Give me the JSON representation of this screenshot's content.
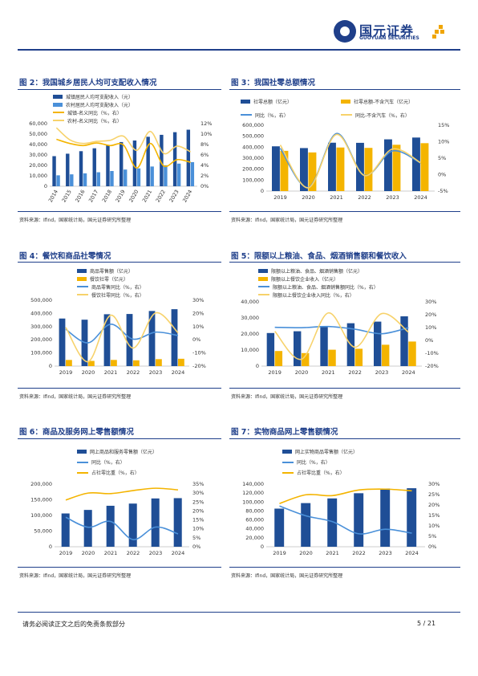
{
  "header": {
    "logo_cn": "国元证券",
    "logo_en": "GUOYUAN SECURITIES"
  },
  "footer": {
    "disclaimer": "请务必阅读正文之后的免责条款部分",
    "page": "5 / 21"
  },
  "figures": [
    {
      "title": "图 2：我国城乡居民人均可支配收入情况",
      "source": "资料来源：Ifind，国家统计局，国元证券研究所整理",
      "legend": [
        "城镇居民人均可支配收入（元）",
        "农村居民人均可支配收入（元）",
        "城镇-名义同比（%，右）",
        "农村-名义同比（%，右）"
      ]
    },
    {
      "title": "图 3：我国社零总额情况",
      "source": "资料来源：Ifind，国家统计局，国元证券研究所整理",
      "legend": [
        "社零总额（亿元）",
        "社零总额-不含汽车（亿元）",
        "同比（%，右）",
        "同比-不含汽车（%，右）"
      ]
    },
    {
      "title": "图 4：餐饮和商品社零情况",
      "source": "资料来源：Ifind，国家统计局，国元证券研究所整理",
      "legend": [
        "商品零售额（亿元）",
        "餐饮社零（亿元）",
        "商品零售同比（%，右）",
        "餐饮社零同比（%，右）"
      ]
    },
    {
      "title": "图 5：限额以上粮油、食品、烟酒销售额和餐饮收入",
      "source": "资料来源：Ifind，国家统计局，国元证券研究所整理",
      "legend": [
        "限额以上粮油、食品、烟酒销售额（亿元）",
        "限额以上餐饮企业收入（亿元）",
        "限额以上粮油、食品、烟酒销售额同比（%，右）",
        "限额以上餐饮企业收入同比（%，右）"
      ]
    },
    {
      "title": "图 6：商品及服务网上零售额情况",
      "source": "资料来源：Ifind，国家统计局，国元证券研究所整理",
      "legend": [
        "网上商品和服务零售额（亿元）",
        "同比（%，右）",
        "占社零比重（%，右）"
      ]
    },
    {
      "title": "图 7：实物商品网上零售额情况",
      "source": "资料来源：Ifind，国家统计局，国元证券研究所整理",
      "legend": [
        "网上实物商品零售额（亿元）",
        "同比（%，右）",
        "占社零比重（%，右）"
      ]
    }
  ],
  "colors": {
    "brand": "#1f3f8a",
    "navy": "#1f4e96",
    "light_blue": "#4a90d9",
    "gold": "#f4b400",
    "light_gold": "#f7d26b"
  },
  "chart_data": [
    {
      "type": "bar",
      "categories": [
        "2014",
        "2015",
        "2016",
        "2017",
        "2018",
        "2019",
        "2020",
        "2021",
        "2022",
        "2023",
        "2024"
      ],
      "y_ticks": [
        "0",
        "10,000",
        "20,000",
        "30,000",
        "40,000",
        "50,000",
        "60,000"
      ],
      "y2_ticks": [
        "0%",
        "2%",
        "4%",
        "6%",
        "8%",
        "10%",
        "12%"
      ],
      "ylim": [
        0,
        60000
      ],
      "y2lim": [
        0,
        12
      ],
      "series": [
        {
          "name": "城镇居民人均可支配收入（元）",
          "kind": "bar",
          "axis": "left",
          "color": "#1f4e96",
          "values": [
            28844,
            31195,
            33616,
            36396,
            39251,
            42359,
            43834,
            47412,
            49283,
            51821,
            54188
          ]
        },
        {
          "name": "农村居民人均可支配收入（元）",
          "kind": "bar",
          "axis": "left",
          "color": "#4a90d9",
          "values": [
            10489,
            11422,
            12363,
            13432,
            14617,
            16021,
            17131,
            18931,
            20133,
            21691,
            23119
          ]
        },
        {
          "name": "城镇-名义同比（%，右）",
          "kind": "line",
          "axis": "right",
          "color": "#f4b400",
          "values": [
            9.0,
            8.2,
            7.8,
            8.3,
            7.8,
            7.9,
            3.5,
            8.2,
            3.9,
            5.1,
            4.6
          ]
        },
        {
          "name": "农村-名义同比（%，右）",
          "kind": "line",
          "axis": "right",
          "color": "#f7d26b",
          "values": [
            11.2,
            8.9,
            8.2,
            8.6,
            8.8,
            9.6,
            6.9,
            10.5,
            6.3,
            7.7,
            6.6
          ]
        }
      ]
    },
    {
      "type": "bar",
      "categories": [
        "2019",
        "2020",
        "2021",
        "2022",
        "2023",
        "2024"
      ],
      "y_ticks": [
        "0",
        "100,000",
        "200,000",
        "300,000",
        "400,000",
        "500,000",
        "600,000"
      ],
      "y2_ticks": [
        "-5%",
        "0%",
        "5%",
        "10%",
        "15%"
      ],
      "ylim": [
        0,
        600000
      ],
      "y2lim": [
        -5,
        15
      ],
      "series": [
        {
          "name": "社零总额（亿元）",
          "kind": "bar",
          "axis": "left",
          "color": "#1f4e96",
          "values": [
            408017,
            391981,
            440823,
            439733,
            471495,
            487895
          ]
        },
        {
          "name": "社零总额-不含汽车（亿元）",
          "kind": "bar",
          "axis": "left",
          "color": "#f4b400",
          "values": [
            366636,
            352228,
            397041,
            393708,
            422123,
            436588
          ]
        },
        {
          "name": "同比（%，右）",
          "kind": "line",
          "axis": "right",
          "color": "#4a90d9",
          "values": [
            8.0,
            -3.9,
            12.5,
            -0.2,
            7.2,
            3.5
          ]
        },
        {
          "name": "同比-不含汽车（%，右）",
          "kind": "line",
          "axis": "right",
          "color": "#f7d26b",
          "values": [
            9.0,
            -4.0,
            12.2,
            -0.3,
            7.8,
            3.6
          ]
        }
      ]
    },
    {
      "type": "bar",
      "categories": [
        "2019",
        "2020",
        "2021",
        "2022",
        "2023",
        "2024"
      ],
      "y_ticks": [
        "0",
        "100,000",
        "200,000",
        "300,000",
        "400,000",
        "500,000"
      ],
      "y2_ticks": [
        "-20%",
        "-10%",
        "0%",
        "10%",
        "20%",
        "30%"
      ],
      "ylim": [
        0,
        500000
      ],
      "y2lim": [
        -20,
        30
      ],
      "series": [
        {
          "name": "商品零售额（亿元）",
          "kind": "bar",
          "axis": "left",
          "color": "#1f4e96",
          "values": [
            361296,
            352453,
            393928,
            395792,
            418605,
            432177
          ]
        },
        {
          "name": "餐饮社零（亿元）",
          "kind": "bar",
          "axis": "left",
          "color": "#f4b400",
          "values": [
            46721,
            39527,
            46895,
            43941,
            52890,
            55718
          ]
        },
        {
          "name": "商品零售同比（%，右）",
          "kind": "line",
          "axis": "right",
          "color": "#4a90d9",
          "values": [
            7.9,
            -2.3,
            11.8,
            0.5,
            5.8,
            3.2
          ]
        },
        {
          "name": "餐饮社零同比（%，右）",
          "kind": "line",
          "axis": "right",
          "color": "#f7d26b",
          "values": [
            9.4,
            -16.6,
            18.6,
            -6.3,
            20.4,
            5.3
          ]
        }
      ]
    },
    {
      "type": "bar",
      "categories": [
        "2019",
        "2020",
        "2021",
        "2022",
        "2023",
        "2024"
      ],
      "y_ticks": [
        "0",
        "10,000",
        "20,000",
        "30,000",
        "40,000"
      ],
      "y2_ticks": [
        "-20%",
        "-10%",
        "0%",
        "10%",
        "20%",
        "30%"
      ],
      "ylim": [
        0,
        40000
      ],
      "y2lim": [
        -20,
        30
      ],
      "series": [
        {
          "name": "限额以上粮油、食品、烟酒销售额（亿元）",
          "kind": "bar",
          "axis": "left",
          "color": "#1f4e96",
          "values": [
            20600,
            21700,
            24500,
            26700,
            27700,
            31000
          ]
        },
        {
          "name": "限额以上餐饮企业收入（亿元）",
          "kind": "bar",
          "axis": "left",
          "color": "#f4b400",
          "values": [
            9400,
            8100,
            10200,
            10800,
            13300,
            15300
          ]
        },
        {
          "name": "限额以上粮油、食品、烟酒销售额同比（%，右）",
          "kind": "line",
          "axis": "right",
          "color": "#4a90d9",
          "values": [
            10.2,
            9.9,
            10.8,
            8.7,
            5.2,
            9.9
          ]
        },
        {
          "name": "限额以上餐饮企业收入同比（%，右）",
          "kind": "line",
          "axis": "right",
          "color": "#f7d26b",
          "values": [
            7.1,
            -14.6,
            21.4,
            -5.3,
            20.9,
            6.4
          ]
        }
      ]
    },
    {
      "type": "bar",
      "categories": [
        "2019",
        "2020",
        "2021",
        "2022",
        "2023",
        "2024"
      ],
      "y_ticks": [
        "0",
        "50,000",
        "100,000",
        "150,000",
        "200,000"
      ],
      "y2_ticks": [
        "0%",
        "5%",
        "10%",
        "15%",
        "20%",
        "25%",
        "30%",
        "35%"
      ],
      "ylim": [
        0,
        200000
      ],
      "y2lim": [
        0,
        35
      ],
      "series": [
        {
          "name": "网上商品和服务零售额（亿元）",
          "kind": "bar",
          "axis": "left",
          "color": "#1f4e96",
          "values": [
            106324,
            117601,
            130884,
            137853,
            154264,
            155225
          ]
        },
        {
          "name": "同比（%，右）",
          "kind": "line",
          "axis": "right",
          "color": "#4a90d9",
          "values": [
            16.5,
            10.9,
            14.1,
            4.0,
            11.0,
            7.2
          ]
        },
        {
          "name": "占社零比重（%，右）",
          "kind": "line",
          "axis": "right",
          "color": "#f4b400",
          "values": [
            26.1,
            30.0,
            29.7,
            31.4,
            32.7,
            31.8
          ]
        }
      ]
    },
    {
      "type": "bar",
      "categories": [
        "2019",
        "2020",
        "2021",
        "2022",
        "2023",
        "2024"
      ],
      "y_ticks": [
        "0",
        "20,000",
        "40,000",
        "60,000",
        "80,000",
        "100,000",
        "120,000",
        "140,000"
      ],
      "y2_ticks": [
        "0%",
        "5%",
        "10%",
        "15%",
        "20%",
        "25%",
        "30%"
      ],
      "ylim": [
        0,
        140000
      ],
      "y2lim": [
        0,
        30
      ],
      "series": [
        {
          "name": "网上实物商品零售额（亿元）",
          "kind": "bar",
          "axis": "left",
          "color": "#1f4e96",
          "values": [
            85239,
            97590,
            108042,
            119642,
            130174,
            130816
          ]
        },
        {
          "name": "同比（%，右）",
          "kind": "line",
          "axis": "right",
          "color": "#4a90d9",
          "values": [
            19.5,
            14.8,
            12.0,
            6.2,
            8.4,
            6.5
          ]
        },
        {
          "name": "占社零比重（%，右）",
          "kind": "line",
          "axis": "right",
          "color": "#f4b400",
          "values": [
            20.7,
            24.9,
            24.5,
            27.2,
            27.6,
            26.8
          ]
        }
      ]
    }
  ]
}
